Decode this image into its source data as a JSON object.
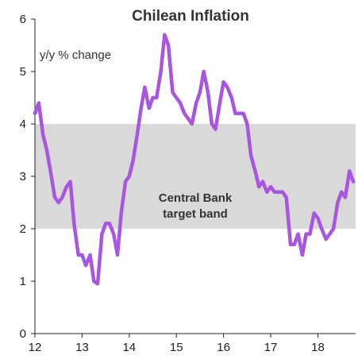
{
  "chart_data": {
    "type": "line",
    "title": "Chilean Inflation",
    "ylabel": "y/y % change",
    "xlabel": "",
    "ylim": [
      0,
      6
    ],
    "xlim": [
      2012,
      2018.8
    ],
    "yticks": [
      "0",
      "1",
      "2",
      "3",
      "4",
      "5",
      "6"
    ],
    "xticks": [
      {
        "value": 2012,
        "label": "12"
      },
      {
        "value": 2013,
        "label": "13"
      },
      {
        "value": 2014,
        "label": "14"
      },
      {
        "value": 2015,
        "label": "15"
      },
      {
        "value": 2016,
        "label": "16"
      },
      {
        "value": 2017,
        "label": "17"
      },
      {
        "value": 2018,
        "label": "18"
      }
    ],
    "grid": false,
    "target_band": {
      "low": 2,
      "high": 4,
      "label_line1": "Central Bank",
      "label_line2": "target band",
      "color": "#d9d9d9"
    },
    "series": [
      {
        "color": "#a855e0",
        "x": [
          2012.0,
          2012.08,
          2012.17,
          2012.25,
          2012.33,
          2012.42,
          2012.5,
          2012.58,
          2012.67,
          2012.75,
          2012.83,
          2012.92,
          2013.0,
          2013.08,
          2013.17,
          2013.25,
          2013.33,
          2013.42,
          2013.5,
          2013.58,
          2013.67,
          2013.75,
          2013.83,
          2013.92,
          2014.0,
          2014.08,
          2014.17,
          2014.25,
          2014.33,
          2014.42,
          2014.5,
          2014.58,
          2014.67,
          2014.75,
          2014.83,
          2014.92,
          2015.0,
          2015.08,
          2015.17,
          2015.25,
          2015.33,
          2015.42,
          2015.5,
          2015.58,
          2015.67,
          2015.75,
          2015.83,
          2015.92,
          2016.0,
          2016.08,
          2016.17,
          2016.25,
          2016.33,
          2016.42,
          2016.5,
          2016.58,
          2016.67,
          2016.75,
          2016.83,
          2016.92,
          2017.0,
          2017.08,
          2017.17,
          2017.25,
          2017.33,
          2017.42,
          2017.5,
          2017.58,
          2017.67,
          2017.75,
          2017.83,
          2017.92,
          2018.0,
          2018.08,
          2018.17,
          2018.25,
          2018.33,
          2018.42,
          2018.5,
          2018.58,
          2018.67,
          2018.75
        ],
        "y": [
          4.2,
          4.4,
          3.8,
          3.5,
          3.1,
          2.6,
          2.5,
          2.6,
          2.8,
          2.9,
          2.1,
          1.5,
          1.5,
          1.3,
          1.5,
          1.0,
          0.95,
          1.9,
          2.1,
          2.1,
          1.9,
          1.5,
          2.3,
          2.9,
          3.0,
          3.3,
          3.8,
          4.3,
          4.7,
          4.3,
          4.5,
          4.5,
          5.0,
          5.7,
          5.5,
          4.6,
          4.5,
          4.4,
          4.2,
          4.1,
          4.0,
          4.4,
          4.6,
          5.0,
          4.6,
          4.0,
          3.9,
          4.4,
          4.8,
          4.7,
          4.5,
          4.2,
          4.2,
          4.2,
          4.0,
          3.4,
          3.1,
          2.8,
          2.9,
          2.7,
          2.8,
          2.7,
          2.7,
          2.7,
          2.6,
          1.7,
          1.7,
          1.9,
          1.5,
          1.9,
          1.9,
          2.3,
          2.2,
          2.0,
          1.8,
          1.9,
          2.0,
          2.5,
          2.7,
          2.6,
          3.1,
          2.9
        ]
      }
    ]
  }
}
